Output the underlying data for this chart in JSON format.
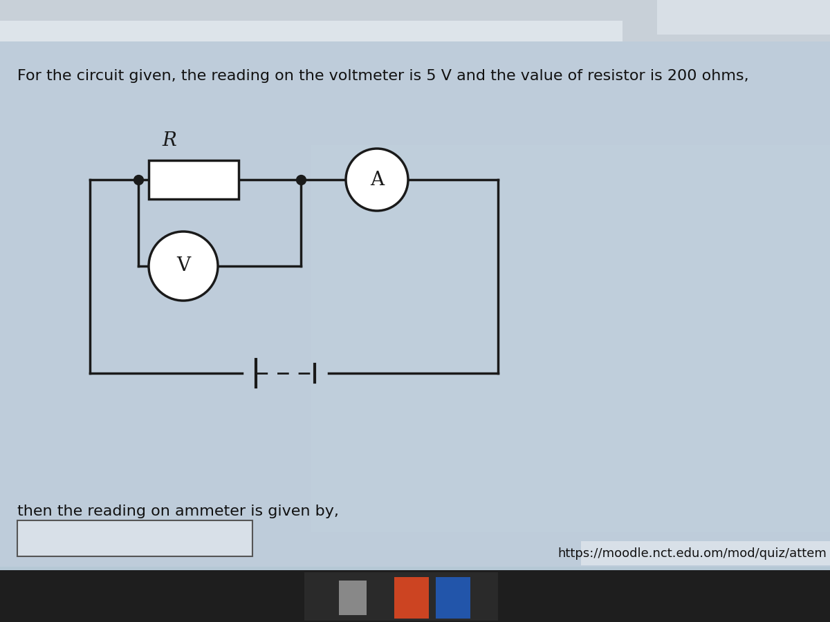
{
  "title_text": "For the circuit given, the reading on the voltmeter is 5 V and the value of resistor is 200 ohms,",
  "subtitle_text": "then the reading on ammeter is given by,",
  "url_text": "https://moodle.nct.edu.om/mod/quiz/attem",
  "title_fontsize": 16,
  "subtitle_fontsize": 16,
  "url_fontsize": 13,
  "R_label": "R",
  "A_label": "A",
  "V_label": "V",
  "line_color": "#1a1a1a",
  "line_width": 2.5,
  "bg_top_color": "#b8cad4",
  "bg_mid_color": "#c8d8e0",
  "bg_bottom_color": "#c0cfd8",
  "taskbar_color": "#2a2a2a",
  "circuit_area_bg": "#c8d4dc",
  "white": "#ffffff",
  "dot_color": "#1a1a1a"
}
